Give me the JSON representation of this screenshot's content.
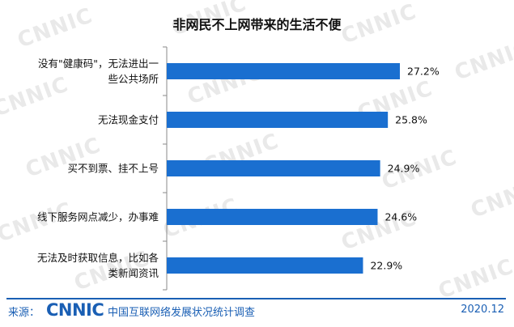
{
  "chart_data": {
    "type": "bar",
    "orientation": "horizontal",
    "title": "非网民不上网带来的生活不便",
    "categories": [
      "没有\"健康码\"，无法进出一些公共场所",
      "无法现金支付",
      "买不到票、挂不上号",
      "线下服务网点减少，办事难",
      "无法及时获取信息，比如各类新闻资讯"
    ],
    "category_lines": [
      [
        "没有\"健康码\"，无法进出一",
        "些公共场所"
      ],
      [
        "无法现金支付"
      ],
      [
        "买不到票、挂不上号"
      ],
      [
        "线下服务网点减少，办事难"
      ],
      [
        "无法及时获取信息，比如各",
        "类新闻资讯"
      ]
    ],
    "values": [
      27.2,
      25.8,
      24.9,
      24.6,
      22.9
    ],
    "value_labels": [
      "27.2%",
      "25.8%",
      "24.9%",
      "24.6%",
      "22.9%"
    ],
    "unit": "%",
    "xlim": [
      0,
      30
    ],
    "grid": false,
    "bar_color": "#1a6fd0",
    "watermark": "CNNIC"
  },
  "footer": {
    "source_label": "来源：",
    "logo_text": "CNNIC",
    "report_name": "中国互联网络发展状况统计调查",
    "date": "2020.12"
  },
  "colors": {
    "accent": "#1a5fb4",
    "bar": "#1a6fd0"
  }
}
